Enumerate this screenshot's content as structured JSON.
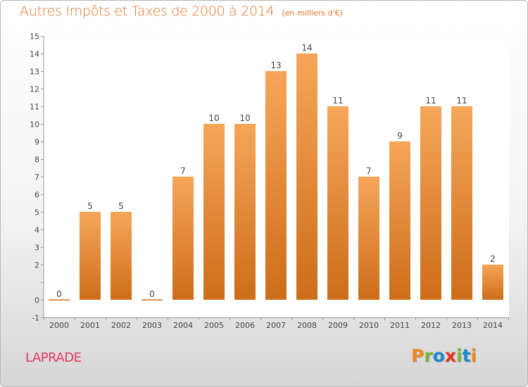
{
  "header": {
    "title": "Autres Impôts et Taxes de 2000 à 2014",
    "subtitle": "(en milliers d'€)"
  },
  "footer": {
    "commune": "LAPRADE",
    "logo_text": "Proxiti"
  },
  "colors": {
    "bar_light": "#f6a659",
    "bar_dark": "#cd6d1a",
    "title": "#e07428",
    "commune": "#e23a5f",
    "logo": [
      "#f08a1e",
      "#7ab833",
      "#1e88d0",
      "#e9311f",
      "#7ab833",
      "#1e88d0",
      "#f08a1e"
    ]
  },
  "chart_data": {
    "type": "bar",
    "title": "Autres Impôts et Taxes de 2000 à 2014",
    "subtitle": "(en milliers d'€)",
    "categories": [
      "2000",
      "2001",
      "2002",
      "2003",
      "2004",
      "2005",
      "2006",
      "2007",
      "2008",
      "2009",
      "2010",
      "2011",
      "2012",
      "2013",
      "2014"
    ],
    "values": [
      0,
      5,
      5,
      0,
      7,
      10,
      10,
      13,
      14,
      11,
      7,
      9,
      11,
      11,
      2
    ],
    "ylim": [
      -1,
      15
    ],
    "yticks": [
      -1,
      0,
      1,
      2,
      3,
      4,
      5,
      6,
      7,
      8,
      9,
      10,
      11,
      12,
      13,
      14,
      15
    ],
    "ytick_labels": [
      "-1",
      "0",
      "",
      "2",
      "3",
      "4",
      "5",
      "6",
      "7",
      "8",
      "9",
      "10",
      "11",
      "12",
      "13",
      "14",
      "15"
    ],
    "grid": false,
    "legend": "none"
  }
}
